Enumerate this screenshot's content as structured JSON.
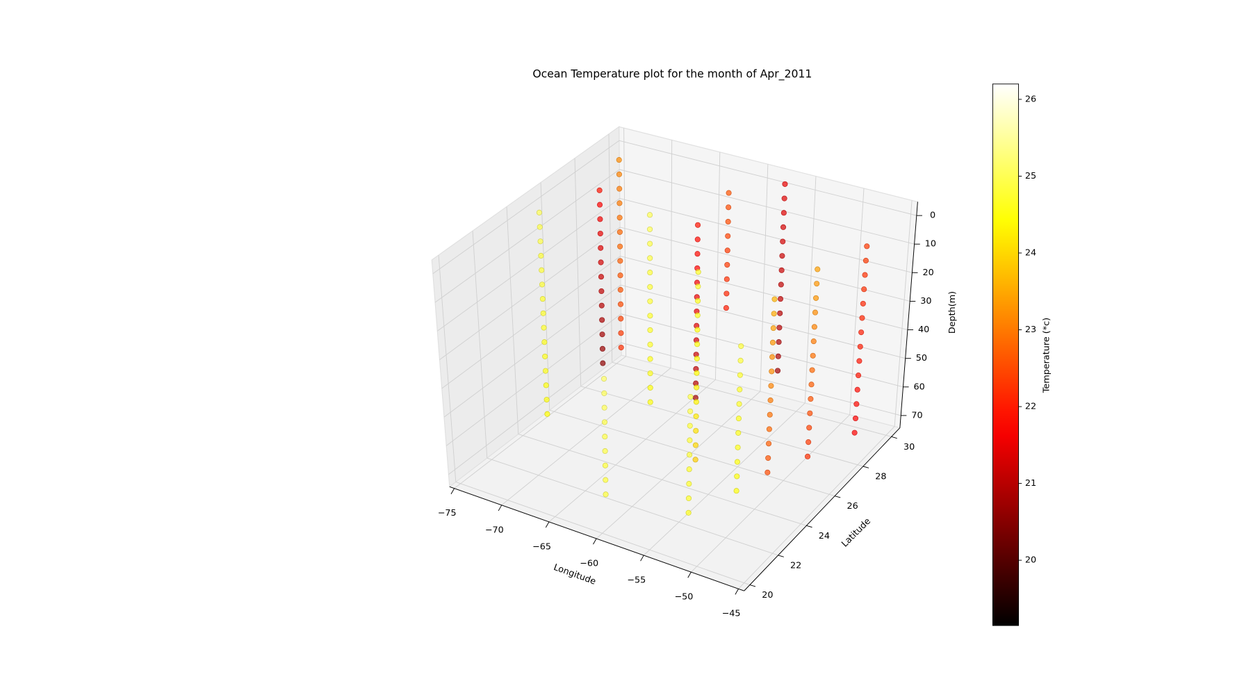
{
  "chart_data": {
    "type": "scatter3d",
    "title": "Ocean Temperature plot for the month of Apr_2011",
    "x_label": "Longitude",
    "y_label": "Latitude",
    "z_label": "Depth(m)",
    "colorbar_label": "Temperature (*c)",
    "cmap": "hot",
    "xlim": [
      -75.5,
      -44.4
    ],
    "ylim": [
      19.6,
      30.6
    ],
    "zlim": [
      -4.8,
      74.3
    ],
    "z_inverted": true,
    "clim": [
      19.15,
      26.2
    ],
    "xticks": [
      {
        "value": -75,
        "label": "−75"
      },
      {
        "value": -70,
        "label": "−70"
      },
      {
        "value": -65,
        "label": "−65"
      },
      {
        "value": -60,
        "label": "−60"
      },
      {
        "value": -55,
        "label": "−55"
      },
      {
        "value": -50,
        "label": "−50"
      },
      {
        "value": -45,
        "label": "−45"
      }
    ],
    "yticks": [
      20,
      22,
      24,
      26,
      28,
      30
    ],
    "zticks": [
      0,
      10,
      20,
      30,
      40,
      50,
      60,
      70
    ],
    "cticks": [
      20,
      21,
      22,
      23,
      24,
      25,
      26
    ],
    "grid": true,
    "profiles": [
      {
        "lon": -71.8,
        "lat": 27.3,
        "depth": [
          0,
          5,
          10,
          15,
          20,
          25,
          30,
          35,
          40,
          45,
          50,
          55,
          60
        ],
        "temperature": [
          21.9,
          21.7,
          21.6,
          21.5,
          21.4,
          21.3,
          21.2,
          21.1,
          21.0,
          20.9,
          20.8,
          20.7,
          20.6
        ]
      },
      {
        "lon": -75,
        "lat": 30.3,
        "depth": [
          5,
          10,
          15,
          20,
          25,
          30,
          35,
          40,
          45,
          50,
          55,
          60,
          65,
          70
        ],
        "temperature": [
          23.2,
          23.1,
          23.0,
          23.0,
          22.9,
          22.8,
          22.8,
          22.7,
          22.6,
          22.6,
          22.5,
          22.4,
          22.3,
          22.2
        ]
      },
      {
        "lon": -74,
        "lat": 25,
        "depth": [
          0,
          5,
          10,
          15,
          20,
          25,
          30,
          35,
          40,
          45,
          50,
          55,
          60,
          65,
          70
        ],
        "temperature": [
          25.0,
          24.9,
          24.9,
          24.8,
          24.8,
          24.8,
          24.7,
          24.7,
          24.7,
          24.6,
          24.6,
          24.6,
          24.5,
          24.5,
          24.4
        ]
      },
      {
        "lon": -67,
        "lat": 27.5,
        "depth": [
          5,
          10,
          15,
          20,
          25,
          30,
          35,
          40,
          45,
          50,
          55,
          60,
          65,
          70
        ],
        "temperature": [
          25.0,
          25.0,
          24.9,
          24.9,
          24.8,
          24.8,
          24.8,
          24.7,
          24.7,
          24.7,
          24.6,
          24.6,
          24.5,
          24.5
        ]
      },
      {
        "lon": -63.7,
        "lat": 28.5,
        "depth": [
          10,
          15,
          20,
          25,
          30,
          35,
          40,
          45,
          50,
          55,
          60,
          65,
          70
        ],
        "temperature": [
          21.9,
          21.8,
          21.8,
          21.7,
          21.6,
          21.5,
          21.5,
          21.4,
          21.3,
          21.2,
          21.1,
          21.0,
          20.8
        ]
      },
      {
        "lon": -63,
        "lat": 30,
        "depth": [
          5,
          10,
          15,
          20,
          25,
          30,
          35,
          40,
          45
        ],
        "temperature": [
          22.6,
          22.5,
          22.5,
          22.4,
          22.3,
          22.3,
          22.2,
          22.1,
          22.0
        ]
      },
      {
        "lon": -58,
        "lat": 25,
        "depth": [
          5,
          10,
          15,
          20,
          25,
          30,
          35,
          40,
          45,
          50,
          55,
          60,
          65,
          70
        ],
        "temperature": [
          24.7,
          24.7,
          24.6,
          24.6,
          24.5,
          24.5,
          24.4,
          24.4,
          24.3,
          24.3,
          24.2,
          24.1,
          24.0,
          23.9
        ]
      },
      {
        "lon": -58,
        "lat": 30.5,
        "depth": [
          0,
          5,
          10,
          15,
          20,
          25,
          30,
          35,
          40,
          45,
          50,
          55,
          60,
          65
        ],
        "temperature": [
          21.5,
          21.4,
          21.4,
          21.3,
          21.3,
          21.2,
          21.2,
          21.1,
          21.1,
          21.0,
          21.0,
          20.9,
          20.9,
          20.8
        ]
      },
      {
        "lon": -49,
        "lat": 27,
        "depth": [
          5,
          10,
          15,
          20,
          25,
          30,
          35,
          40,
          45,
          50,
          55,
          60,
          65,
          70
        ],
        "temperature": [
          23.4,
          23.3,
          23.3,
          23.2,
          23.1,
          23.0,
          22.9,
          22.8,
          22.7,
          22.6,
          22.5,
          22.4,
          22.3,
          22.2
        ]
      },
      {
        "lon": -51,
        "lat": 25.5,
        "depth": [
          10,
          15,
          20,
          25,
          30,
          35,
          40,
          45,
          50,
          55,
          60,
          65,
          70
        ],
        "temperature": [
          23.6,
          23.5,
          23.4,
          23.3,
          23.2,
          23.2,
          23.1,
          23.0,
          22.9,
          22.8,
          22.7,
          22.6,
          22.5
        ]
      },
      {
        "lon": -52,
        "lat": 24,
        "depth": [
          20,
          25,
          30,
          35,
          40,
          45,
          50,
          55,
          60,
          65,
          70
        ],
        "temperature": [
          24.8,
          24.8,
          24.7,
          24.7,
          24.7,
          24.6,
          24.6,
          24.6,
          24.5,
          24.5,
          24.5
        ]
      },
      {
        "lon": -54,
        "lat": 22,
        "depth": [
          30,
          35,
          40,
          45,
          50,
          55,
          60,
          65,
          70
        ],
        "temperature": [
          24.9,
          24.9,
          24.8,
          24.8,
          24.8,
          24.7,
          24.7,
          24.7,
          24.6
        ]
      },
      {
        "lon": -47,
        "lat": 29,
        "depth": [
          5,
          10,
          15,
          20,
          25,
          30,
          35,
          40,
          45,
          50,
          55,
          60,
          65,
          70
        ],
        "temperature": [
          22.3,
          22.3,
          22.2,
          22.2,
          22.1,
          22.1,
          22.0,
          22.0,
          21.9,
          21.9,
          21.8,
          21.8,
          21.7,
          21.7
        ]
      },
      {
        "lon": -62,
        "lat": 21.5,
        "depth": [
          30,
          35,
          40,
          45,
          50,
          55,
          60,
          65,
          70
        ],
        "temperature": [
          25.1,
          25.0,
          25.0,
          24.9,
          24.9,
          24.9,
          24.8,
          24.8,
          24.8
        ]
      }
    ]
  }
}
